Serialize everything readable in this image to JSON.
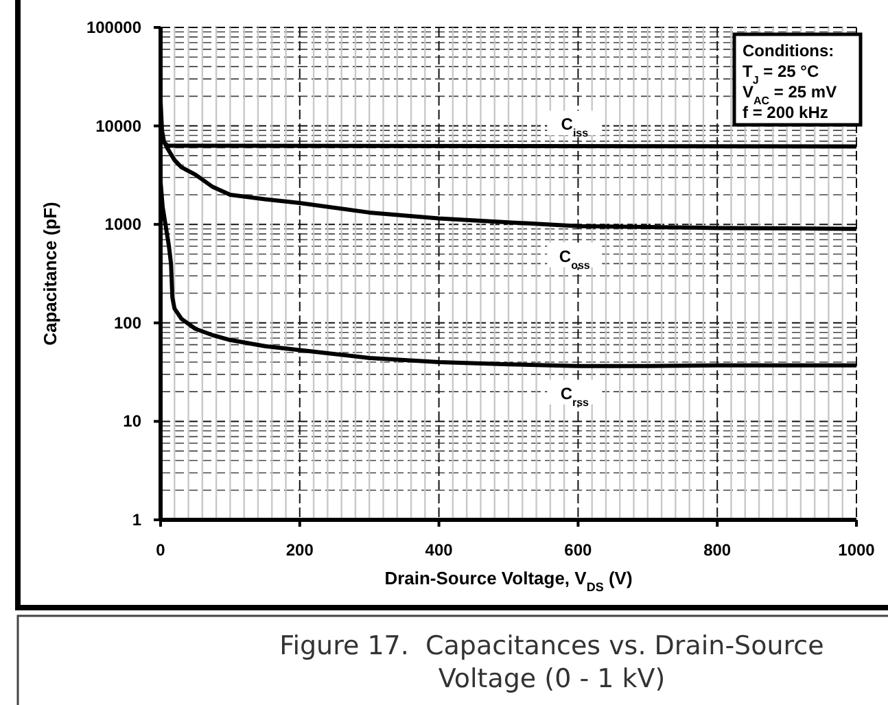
{
  "chart_data": {
    "type": "line",
    "title": "Figure 17.  Capacitances vs. Drain-Source Voltage (0 - 1 kV)",
    "xlabel": "Drain-Source Voltage, V$_{DS}$ (V)",
    "ylabel": "Capacitance (pF)",
    "annotations": [
      "Conditions:",
      "T$_{J}$ = 25 °C",
      "V$_{AC}$ = 25 mV",
      "f = 200 kHz"
    ],
    "log": "y",
    "grid": true,
    "marker": "none",
    "line_style": "solid",
    "xlim": [
      0,
      1000
    ],
    "ylim": [
      1,
      100000
    ],
    "xticks": [
      0,
      {
        "value": 20,
        "label": null
      },
      {
        "value": 40,
        "label": null
      },
      {
        "value": 60,
        "label": null
      },
      {
        "value": 80,
        "label": null
      },
      {
        "value": 100,
        "label": null
      },
      {
        "value": 120,
        "label": null
      },
      {
        "value": 140,
        "label": null
      },
      {
        "value": 160,
        "label": null
      },
      {
        "value": 180,
        "label": null
      },
      200,
      {
        "value": 220,
        "label": null
      },
      {
        "value": 240,
        "label": null
      },
      {
        "value": 260,
        "label": null
      },
      {
        "value": 280,
        "label": null
      },
      {
        "value": 300,
        "label": null
      },
      {
        "value": 320,
        "label": null
      },
      {
        "value": 340,
        "label": null
      },
      {
        "value": 360,
        "label": null
      },
      {
        "value": 380,
        "label": null
      },
      400,
      {
        "value": 420,
        "label": null
      },
      {
        "value": 440,
        "label": null
      },
      {
        "value": 460,
        "label": null
      },
      {
        "value": 480,
        "label": null
      },
      {
        "value": 500,
        "label": null
      },
      {
        "value": 520,
        "label": null
      },
      {
        "value": 540,
        "label": null
      },
      {
        "value": 560,
        "label": null
      },
      {
        "value": 580,
        "label": null
      },
      600,
      {
        "value": 620,
        "label": null
      },
      {
        "value": 640,
        "label": null
      },
      {
        "value": 660,
        "label": null
      },
      {
        "value": 680,
        "label": null
      },
      {
        "value": 700,
        "label": null
      },
      {
        "value": 720,
        "label": null
      },
      {
        "value": 740,
        "label": null
      },
      {
        "value": 760,
        "label": null
      },
      {
        "value": 780,
        "label": null
      },
      800,
      {
        "value": 820,
        "label": null
      },
      {
        "value": 840,
        "label": null
      },
      {
        "value": 860,
        "label": null
      },
      {
        "value": 880,
        "label": null
      },
      {
        "value": 900,
        "label": null
      },
      {
        "value": 920,
        "label": null
      },
      {
        "value": 940,
        "label": null
      },
      {
        "value": 960,
        "label": null
      },
      {
        "value": 980,
        "label": null
      },
      1000
    ],
    "yticks": [
      1,
      {
        "value": 2,
        "label": null
      },
      {
        "value": 3,
        "label": null
      },
      {
        "value": 4,
        "label": null
      },
      {
        "value": 5,
        "label": null
      },
      {
        "value": 6,
        "label": null
      },
      {
        "value": 7,
        "label": null
      },
      {
        "value": 8,
        "label": null
      },
      {
        "value": 9,
        "label": null
      },
      10,
      {
        "value": 20,
        "label": null
      },
      {
        "value": 30,
        "label": null
      },
      {
        "value": 40,
        "label": null
      },
      {
        "value": 50,
        "label": null
      },
      {
        "value": 60,
        "label": null
      },
      {
        "value": 70,
        "label": null
      },
      {
        "value": 80,
        "label": null
      },
      {
        "value": 90,
        "label": null
      },
      100,
      {
        "value": 200,
        "label": null
      },
      {
        "value": 300,
        "label": null
      },
      {
        "value": 400,
        "label": null
      },
      {
        "value": 500,
        "label": null
      },
      {
        "value": 600,
        "label": null
      },
      {
        "value": 700,
        "label": null
      },
      {
        "value": 800,
        "label": null
      },
      {
        "value": 900,
        "label": null
      },
      1000,
      {
        "value": 2000,
        "label": null
      },
      {
        "value": 3000,
        "label": null
      },
      {
        "value": 4000,
        "label": null
      },
      {
        "value": 5000,
        "label": null
      },
      {
        "value": 6000,
        "label": null
      },
      {
        "value": 7000,
        "label": null
      },
      {
        "value": 8000,
        "label": null
      },
      {
        "value": 9000,
        "label": null
      },
      10000,
      {
        "value": 20000,
        "label": null
      },
      {
        "value": 30000,
        "label": null
      },
      {
        "value": 40000,
        "label": null
      },
      {
        "value": 50000,
        "label": null
      },
      {
        "value": 60000,
        "label": null
      },
      {
        "value": 70000,
        "label": null
      },
      {
        "value": 80000,
        "label": null
      },
      {
        "value": 90000,
        "label": null
      },
      100000
    ],
    "series": [
      {
        "name": "C$_{iss}$",
        "color": "#000000",
        "x": [
          0,
          5,
          10,
          50,
          1000
        ],
        "values": [
          8000,
          6800,
          6300,
          6300,
          6200
        ]
      },
      {
        "name": "C$_{oss}$",
        "color": "#000000",
        "x": [
          0,
          2,
          5,
          10,
          20,
          30,
          50,
          75,
          100,
          150,
          200,
          300,
          400,
          500,
          600,
          700,
          800,
          900,
          1000
        ],
        "values": [
          18000,
          9000,
          6900,
          5900,
          4500,
          3800,
          3200,
          2400,
          2000,
          1800,
          1650,
          1320,
          1150,
          1050,
          960,
          940,
          920,
          910,
          900
        ]
      },
      {
        "name": "C$_{rss}$",
        "color": "#000000",
        "x": [
          0,
          3,
          7,
          12,
          15,
          17,
          20,
          30,
          50,
          75,
          100,
          150,
          200,
          300,
          400,
          500,
          600,
          700,
          800,
          900,
          1000
        ],
        "values": [
          2700,
          1500,
          1000,
          600,
          400,
          180,
          140,
          110,
          87,
          75,
          67,
          58,
          53,
          44,
          40,
          38,
          36.5,
          36.5,
          37,
          37,
          37
        ]
      }
    ]
  }
}
